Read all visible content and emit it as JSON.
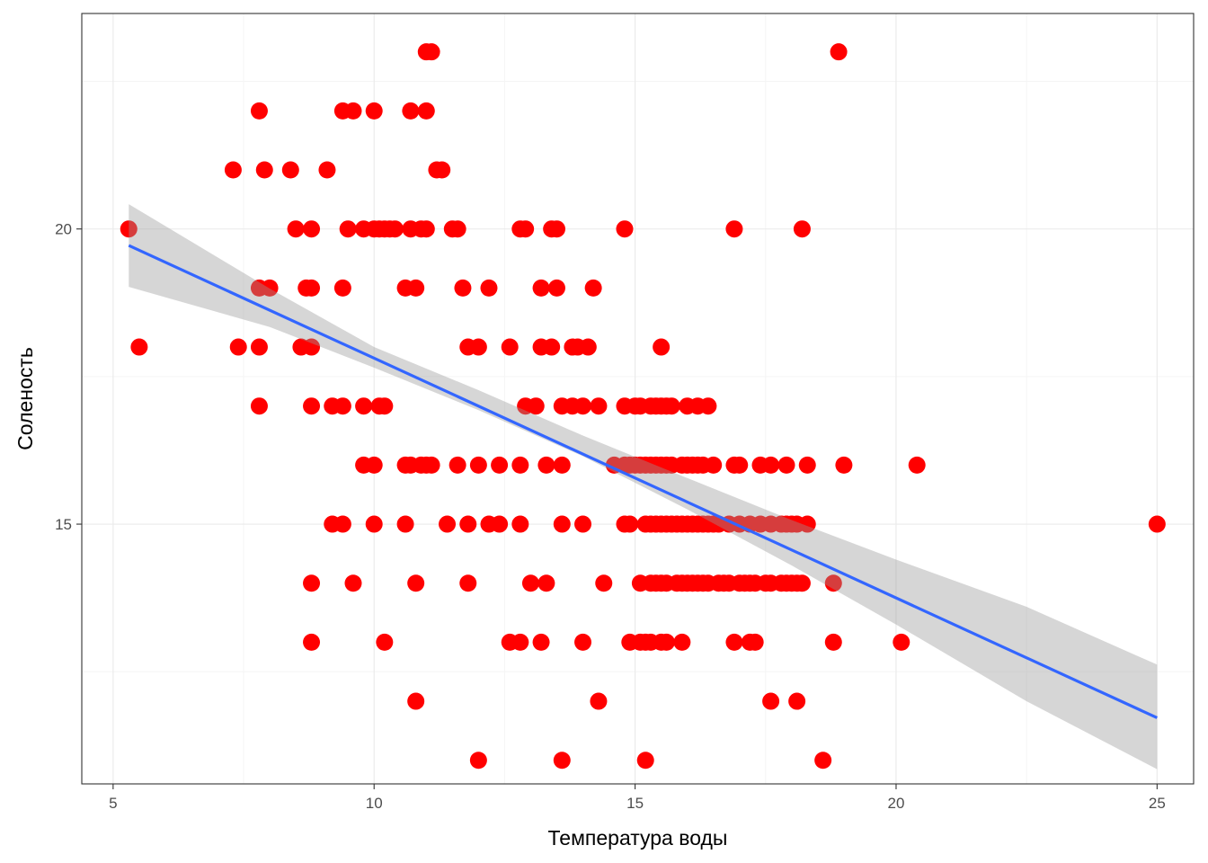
{
  "chart_data": {
    "type": "scatter",
    "title": "",
    "xlabel": "Температура воды",
    "ylabel": "Соленость",
    "xlim": [
      4.4,
      25.7
    ],
    "ylim": [
      10.6,
      23.65
    ],
    "x_ticks": [
      5,
      10,
      15,
      20,
      25
    ],
    "x_tick_labels": [
      "5",
      "10",
      "15",
      "20",
      "25"
    ],
    "y_ticks": [
      15,
      20
    ],
    "y_tick_labels": [
      "15",
      "20"
    ],
    "grid": true,
    "legend": "none",
    "colors": {
      "points": "#ff0000",
      "fit_line": "#3366ff",
      "ribbon": "#999999",
      "grid_major": "#ebebeb",
      "grid_minor": "#f5f5f5",
      "panel_border": "#333333"
    },
    "points": [
      [
        11.0,
        23
      ],
      [
        11.1,
        23
      ],
      [
        18.9,
        23
      ],
      [
        7.8,
        22
      ],
      [
        9.4,
        22
      ],
      [
        9.6,
        22
      ],
      [
        10.0,
        22
      ],
      [
        10.7,
        22
      ],
      [
        11.0,
        22
      ],
      [
        7.3,
        21
      ],
      [
        7.9,
        21
      ],
      [
        8.4,
        21
      ],
      [
        9.1,
        21
      ],
      [
        11.2,
        21
      ],
      [
        11.3,
        21
      ],
      [
        5.3,
        20
      ],
      [
        8.5,
        20
      ],
      [
        8.8,
        20
      ],
      [
        9.5,
        20
      ],
      [
        9.8,
        20
      ],
      [
        10.0,
        20
      ],
      [
        10.1,
        20
      ],
      [
        10.2,
        20
      ],
      [
        10.3,
        20
      ],
      [
        10.4,
        20
      ],
      [
        10.7,
        20
      ],
      [
        10.9,
        20
      ],
      [
        11.0,
        20
      ],
      [
        11.5,
        20
      ],
      [
        11.6,
        20
      ],
      [
        12.8,
        20
      ],
      [
        12.9,
        20
      ],
      [
        13.4,
        20
      ],
      [
        13.5,
        20
      ],
      [
        14.8,
        20
      ],
      [
        16.9,
        20
      ],
      [
        18.2,
        20
      ],
      [
        7.8,
        19
      ],
      [
        8.0,
        19
      ],
      [
        8.7,
        19
      ],
      [
        8.8,
        19
      ],
      [
        9.4,
        19
      ],
      [
        10.6,
        19
      ],
      [
        10.8,
        19
      ],
      [
        11.7,
        19
      ],
      [
        12.2,
        19
      ],
      [
        13.2,
        19
      ],
      [
        13.5,
        19
      ],
      [
        14.2,
        19
      ],
      [
        5.5,
        18
      ],
      [
        7.4,
        18
      ],
      [
        7.8,
        18
      ],
      [
        8.6,
        18
      ],
      [
        8.8,
        18
      ],
      [
        11.8,
        18
      ],
      [
        12.0,
        18
      ],
      [
        12.6,
        18
      ],
      [
        13.2,
        18
      ],
      [
        13.4,
        18
      ],
      [
        13.8,
        18
      ],
      [
        13.9,
        18
      ],
      [
        14.1,
        18
      ],
      [
        15.5,
        18
      ],
      [
        7.8,
        17
      ],
      [
        8.8,
        17
      ],
      [
        9.2,
        17
      ],
      [
        9.4,
        17
      ],
      [
        9.8,
        17
      ],
      [
        10.1,
        17
      ],
      [
        10.2,
        17
      ],
      [
        12.9,
        17
      ],
      [
        13.1,
        17
      ],
      [
        13.6,
        17
      ],
      [
        13.8,
        17
      ],
      [
        14.0,
        17
      ],
      [
        14.3,
        17
      ],
      [
        14.8,
        17
      ],
      [
        15.0,
        17
      ],
      [
        15.1,
        17
      ],
      [
        15.3,
        17
      ],
      [
        15.4,
        17
      ],
      [
        15.5,
        17
      ],
      [
        15.6,
        17
      ],
      [
        15.7,
        17
      ],
      [
        16.0,
        17
      ],
      [
        16.2,
        17
      ],
      [
        16.4,
        17
      ],
      [
        9.8,
        16
      ],
      [
        10.0,
        16
      ],
      [
        10.6,
        16
      ],
      [
        10.7,
        16
      ],
      [
        10.9,
        16
      ],
      [
        11.0,
        16
      ],
      [
        11.1,
        16
      ],
      [
        11.6,
        16
      ],
      [
        12.0,
        16
      ],
      [
        12.4,
        16
      ],
      [
        12.8,
        16
      ],
      [
        13.3,
        16
      ],
      [
        13.6,
        16
      ],
      [
        14.6,
        16
      ],
      [
        14.8,
        16
      ],
      [
        14.9,
        16
      ],
      [
        15.0,
        16
      ],
      [
        15.1,
        16
      ],
      [
        15.2,
        16
      ],
      [
        15.3,
        16
      ],
      [
        15.4,
        16
      ],
      [
        15.5,
        16
      ],
      [
        15.6,
        16
      ],
      [
        15.7,
        16
      ],
      [
        15.9,
        16
      ],
      [
        16.0,
        16
      ],
      [
        16.1,
        16
      ],
      [
        16.2,
        16
      ],
      [
        16.3,
        16
      ],
      [
        16.5,
        16
      ],
      [
        16.9,
        16
      ],
      [
        17.0,
        16
      ],
      [
        17.4,
        16
      ],
      [
        17.6,
        16
      ],
      [
        17.9,
        16
      ],
      [
        18.3,
        16
      ],
      [
        19.0,
        16
      ],
      [
        20.4,
        16
      ],
      [
        9.2,
        15
      ],
      [
        9.4,
        15
      ],
      [
        10.0,
        15
      ],
      [
        10.6,
        15
      ],
      [
        11.4,
        15
      ],
      [
        11.8,
        15
      ],
      [
        12.2,
        15
      ],
      [
        12.4,
        15
      ],
      [
        12.8,
        15
      ],
      [
        13.6,
        15
      ],
      [
        14.0,
        15
      ],
      [
        14.8,
        15
      ],
      [
        14.9,
        15
      ],
      [
        15.2,
        15
      ],
      [
        15.3,
        15
      ],
      [
        15.4,
        15
      ],
      [
        15.5,
        15
      ],
      [
        15.6,
        15
      ],
      [
        15.7,
        15
      ],
      [
        15.8,
        15
      ],
      [
        15.9,
        15
      ],
      [
        16.0,
        15
      ],
      [
        16.1,
        15
      ],
      [
        16.2,
        15
      ],
      [
        16.3,
        15
      ],
      [
        16.4,
        15
      ],
      [
        16.5,
        15
      ],
      [
        16.6,
        15
      ],
      [
        16.8,
        15
      ],
      [
        17.0,
        15
      ],
      [
        17.2,
        15
      ],
      [
        17.4,
        15
      ],
      [
        17.6,
        15
      ],
      [
        17.8,
        15
      ],
      [
        17.9,
        15
      ],
      [
        18.0,
        15
      ],
      [
        18.1,
        15
      ],
      [
        18.3,
        15
      ],
      [
        25.0,
        15
      ],
      [
        8.8,
        14
      ],
      [
        9.6,
        14
      ],
      [
        10.8,
        14
      ],
      [
        11.8,
        14
      ],
      [
        13.0,
        14
      ],
      [
        13.3,
        14
      ],
      [
        14.4,
        14
      ],
      [
        15.1,
        14
      ],
      [
        15.3,
        14
      ],
      [
        15.4,
        14
      ],
      [
        15.5,
        14
      ],
      [
        15.6,
        14
      ],
      [
        15.8,
        14
      ],
      [
        15.9,
        14
      ],
      [
        16.0,
        14
      ],
      [
        16.1,
        14
      ],
      [
        16.2,
        14
      ],
      [
        16.3,
        14
      ],
      [
        16.4,
        14
      ],
      [
        16.6,
        14
      ],
      [
        16.7,
        14
      ],
      [
        16.8,
        14
      ],
      [
        17.0,
        14
      ],
      [
        17.1,
        14
      ],
      [
        17.2,
        14
      ],
      [
        17.3,
        14
      ],
      [
        17.5,
        14
      ],
      [
        17.6,
        14
      ],
      [
        17.8,
        14
      ],
      [
        17.9,
        14
      ],
      [
        18.0,
        14
      ],
      [
        18.1,
        14
      ],
      [
        18.2,
        14
      ],
      [
        18.8,
        14
      ],
      [
        8.8,
        13
      ],
      [
        10.2,
        13
      ],
      [
        12.6,
        13
      ],
      [
        12.8,
        13
      ],
      [
        13.2,
        13
      ],
      [
        14.0,
        13
      ],
      [
        14.9,
        13
      ],
      [
        15.1,
        13
      ],
      [
        15.2,
        13
      ],
      [
        15.3,
        13
      ],
      [
        15.5,
        13
      ],
      [
        15.6,
        13
      ],
      [
        15.9,
        13
      ],
      [
        16.9,
        13
      ],
      [
        17.2,
        13
      ],
      [
        17.3,
        13
      ],
      [
        18.8,
        13
      ],
      [
        20.1,
        13
      ],
      [
        10.8,
        12
      ],
      [
        14.3,
        12
      ],
      [
        17.6,
        12
      ],
      [
        18.1,
        12
      ],
      [
        12.0,
        11
      ],
      [
        13.6,
        11
      ],
      [
        15.2,
        11
      ],
      [
        18.6,
        11
      ]
    ],
    "fit_line": {
      "method": "lm",
      "x_start": 5.3,
      "y_start": 19.72,
      "x_end": 25.0,
      "y_end": 11.72
    },
    "confidence_band": [
      {
        "x": 5.3,
        "lower": 19.02,
        "upper": 20.42
      },
      {
        "x": 8.0,
        "lower": 18.34,
        "upper": 18.99
      },
      {
        "x": 10.0,
        "lower": 17.65,
        "upper": 18.0
      },
      {
        "x": 12.0,
        "lower": 16.93,
        "upper": 17.27
      },
      {
        "x": 14.0,
        "lower": 16.15,
        "upper": 16.5
      },
      {
        "x": 16.0,
        "lower": 15.25,
        "upper": 15.78
      },
      {
        "x": 18.0,
        "lower": 14.3,
        "upper": 15.07
      },
      {
        "x": 20.0,
        "lower": 13.3,
        "upper": 14.4
      },
      {
        "x": 22.5,
        "lower": 12.0,
        "upper": 13.6
      },
      {
        "x": 25.0,
        "lower": 10.85,
        "upper": 12.62
      }
    ]
  }
}
